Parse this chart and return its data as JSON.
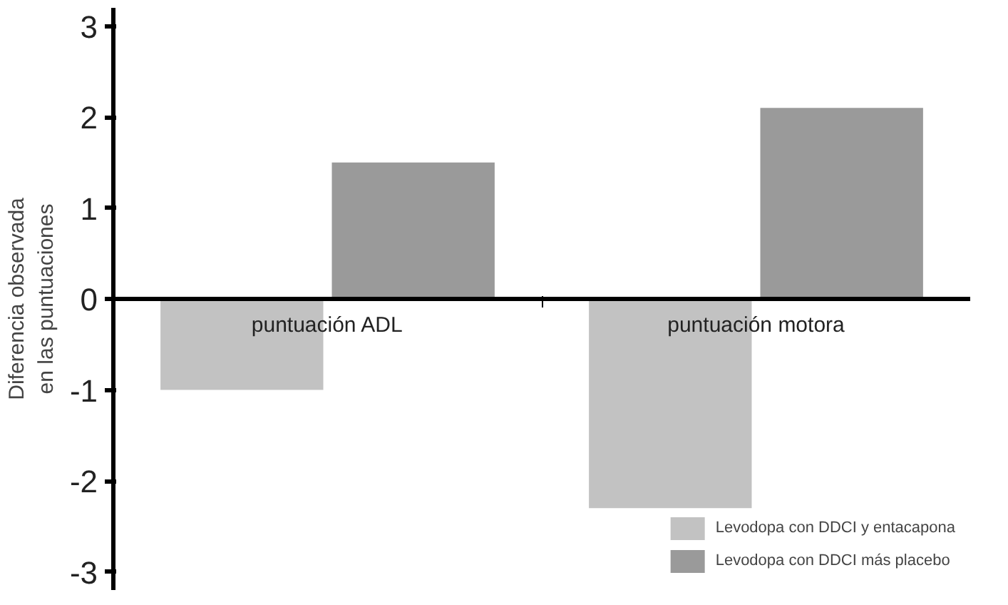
{
  "chart_data": {
    "type": "bar",
    "ylabel": "Diferencia observada\nen las puntuaciones",
    "categories": [
      "puntuación ADL",
      "puntuación motora"
    ],
    "series": [
      {
        "name": "Levodopa con DDCI y entacapona",
        "color": "#c2c2c2",
        "values": [
          -1.0,
          -2.3
        ]
      },
      {
        "name": "Levodopa con DDCI más placebo",
        "color": "#9a9a9a",
        "values": [
          1.5,
          2.1
        ]
      }
    ],
    "ylim": [
      -3.2,
      3.2
    ],
    "yticks": [
      -3,
      -2,
      -1,
      0,
      1,
      2,
      3
    ],
    "grid": false,
    "legend": "bottom right"
  }
}
